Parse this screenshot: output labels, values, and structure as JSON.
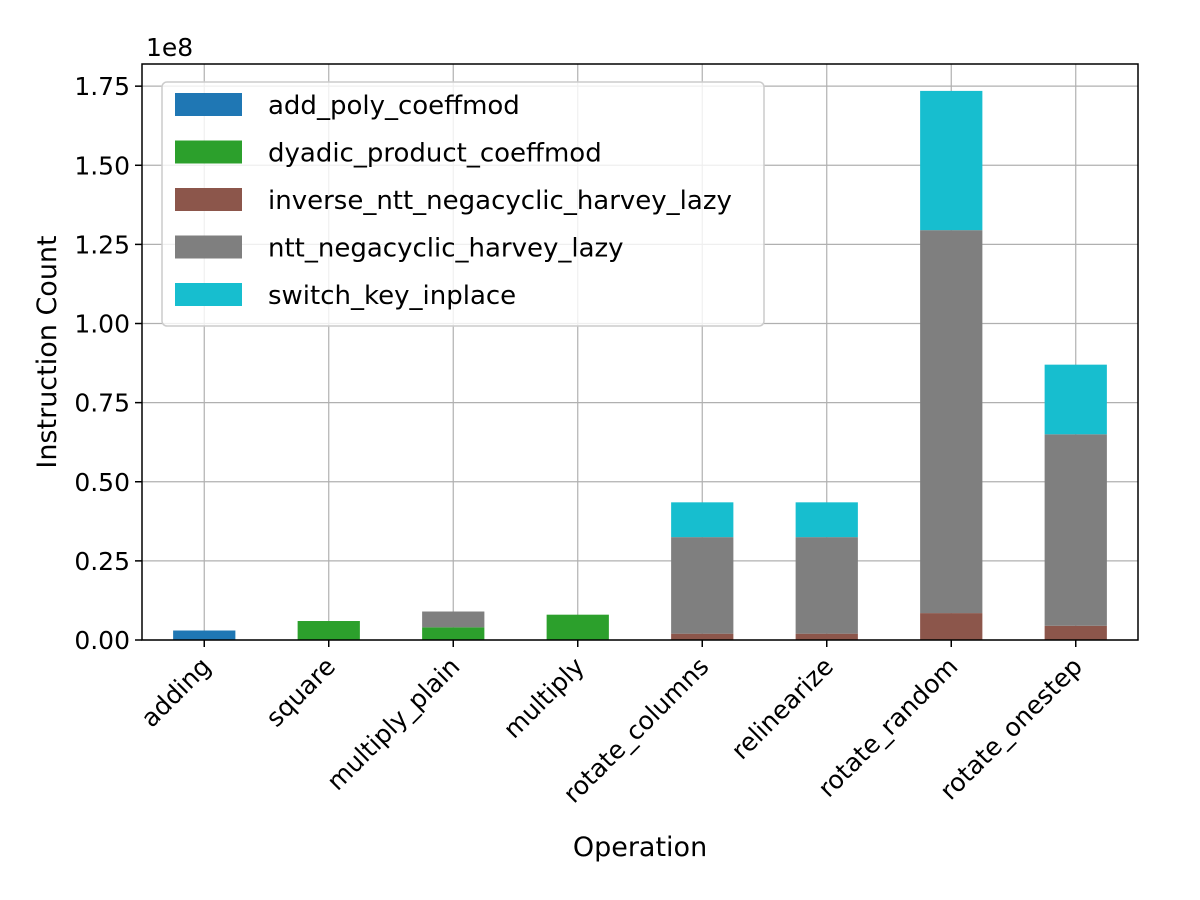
{
  "chart_data": {
    "type": "bar",
    "stacked": true,
    "title": "",
    "xlabel": "Operation",
    "ylabel": "Instruction Count",
    "y_offset_label": "1e8",
    "ylim": [
      0,
      1.82
    ],
    "y_unit_multiplier": 100000000,
    "yticks": [
      "0.00",
      "0.25",
      "0.50",
      "0.75",
      "1.00",
      "1.25",
      "1.50",
      "1.75"
    ],
    "grid": true,
    "legend_position": "top-left",
    "categories": [
      "adding",
      "square",
      "multiply_plain",
      "multiply",
      "rotate_columns",
      "relinearize",
      "rotate_random",
      "rotate_onestep"
    ],
    "series": [
      {
        "name": "add_poly_coeffmod",
        "color": "#1f77b4",
        "values": [
          0.03,
          0,
          0,
          0,
          0,
          0,
          0,
          0
        ]
      },
      {
        "name": "dyadic_product_coeffmod",
        "color": "#2ca02c",
        "values": [
          0,
          0.06,
          0.04,
          0.08,
          0,
          0,
          0,
          0
        ]
      },
      {
        "name": "inverse_ntt_negacyclic_harvey_lazy",
        "color": "#8c564b",
        "values": [
          0,
          0,
          0,
          0,
          0.02,
          0.02,
          0.085,
          0.045
        ]
      },
      {
        "name": "ntt_negacyclic_harvey_lazy",
        "color": "#7f7f7f",
        "values": [
          0,
          0,
          0.05,
          0,
          0.305,
          0.305,
          1.21,
          0.605
        ]
      },
      {
        "name": "switch_key_inplace",
        "color": "#17becf",
        "values": [
          0,
          0,
          0,
          0,
          0.11,
          0.11,
          0.44,
          0.22
        ]
      }
    ]
  }
}
